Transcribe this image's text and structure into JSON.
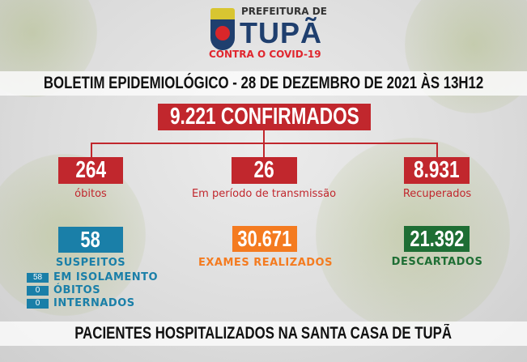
{
  "header": {
    "logo_line1": "PREFEITURA DE",
    "logo_line2": "TUPÃ",
    "logo_line3": "CONTRA O COVID-19"
  },
  "title": "BOLETIM EPIDEMIOLÓGICO - 28 DE DEZEMBRO DE 2021 ÀS 13H12",
  "confirmed": "9.221  CONFIRMADOS",
  "stats": [
    {
      "value": "264",
      "label": "óbitos"
    },
    {
      "value": "26",
      "label": "Em período de transmissão"
    },
    {
      "value": "8.931",
      "label": "Recuperados"
    }
  ],
  "suspects": {
    "value": "58",
    "label": "SUSPEITOS",
    "breakdown": [
      {
        "value": "58",
        "label": "EM ISOLAMENTO"
      },
      {
        "value": "0",
        "label": "ÓBITOS"
      },
      {
        "value": "0",
        "label": "INTERNADOS"
      }
    ]
  },
  "exams": {
    "value": "30.671",
    "label": "EXAMES REALIZADOS"
  },
  "discarded": {
    "value": "21.392",
    "label": "DESCARTADOS"
  },
  "footer": "PACIENTES HOSPITALIZADOS NA SANTA CASA DE TUPÃ",
  "colors": {
    "red": "#c1272d",
    "blue": "#1a7fa8",
    "orange": "#f47b20",
    "green": "#1e6e34",
    "navy": "#1f3f6e"
  }
}
